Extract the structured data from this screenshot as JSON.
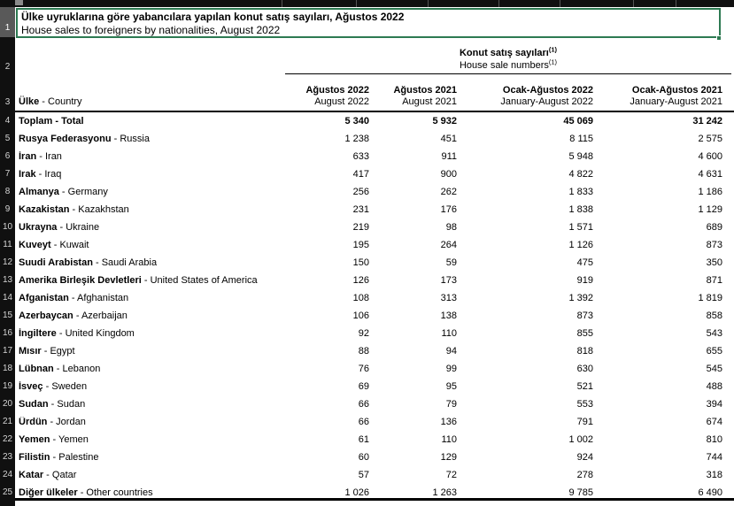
{
  "colors": {
    "selection_green": "#2d7a52",
    "gutter_black": "#101010",
    "selected_row_header_gray": "#595959"
  },
  "sheet": {
    "title": {
      "tr": "Ülke uyruklarına göre yabancılara yapılan konut satış sayıları, Ağustos 2022",
      "en": "House sales to foreigners by nationalities, August 2022"
    },
    "group_header": {
      "tr": "Konut satış sayıları",
      "en": "House sale numbers",
      "footnote": "(1)"
    },
    "row_header": {
      "tr": "Ülke",
      "en": "Country"
    },
    "name_separator": " - ",
    "columns": [
      {
        "tr": "Ağustos 2022",
        "en": "August 2022"
      },
      {
        "tr": "Ağustos 2021",
        "en": "August 2021"
      },
      {
        "tr": "Ocak-Ağustos 2022",
        "en": "January-August 2022"
      },
      {
        "tr": "Ocak-Ağustos 2021",
        "en": "January-August 2021"
      }
    ],
    "gutter": {
      "row_numbers": [
        "1",
        "2",
        "3",
        "4",
        "5",
        "6",
        "7",
        "8",
        "9",
        "10",
        "11",
        "12",
        "13",
        "14",
        "15",
        "16",
        "17",
        "18",
        "19",
        "20",
        "21",
        "22",
        "23",
        "24",
        "25"
      ]
    },
    "rows": [
      {
        "tr": "Toplam",
        "en": "Total",
        "bold": true,
        "values": [
          "5 340",
          "5 932",
          "45 069",
          "31 242"
        ]
      },
      {
        "tr": "Rusya Federasyonu",
        "en": "Russia",
        "values": [
          "1 238",
          "451",
          "8 115",
          "2 575"
        ]
      },
      {
        "tr": "İran",
        "en": "Iran",
        "values": [
          "633",
          "911",
          "5 948",
          "4 600"
        ]
      },
      {
        "tr": "Irak",
        "en": "Iraq",
        "values": [
          "417",
          "900",
          "4 822",
          "4 631"
        ]
      },
      {
        "tr": "Almanya",
        "en": "Germany",
        "values": [
          "256",
          "262",
          "1 833",
          "1 186"
        ]
      },
      {
        "tr": "Kazakistan",
        "en": "Kazakhstan",
        "values": [
          "231",
          "176",
          "1 838",
          "1 129"
        ]
      },
      {
        "tr": "Ukrayna",
        "en": "Ukraine",
        "values": [
          "219",
          "98",
          "1 571",
          "689"
        ]
      },
      {
        "tr": "Kuveyt",
        "en": "Kuwait",
        "values": [
          "195",
          "264",
          "1 126",
          "873"
        ]
      },
      {
        "tr": "Suudi Arabistan",
        "en": "Saudi Arabia",
        "values": [
          "150",
          "59",
          "475",
          "350"
        ]
      },
      {
        "tr": "Amerika Birleşik Devletleri",
        "en": "United States of America",
        "values": [
          "126",
          "173",
          "919",
          "871"
        ]
      },
      {
        "tr": "Afganistan",
        "en": "Afghanistan",
        "values": [
          "108",
          "313",
          "1 392",
          "1 819"
        ]
      },
      {
        "tr": "Azerbaycan",
        "en": "Azerbaijan",
        "values": [
          "106",
          "138",
          "873",
          "858"
        ]
      },
      {
        "tr": "İngiltere",
        "en": "United Kingdom",
        "values": [
          "92",
          "110",
          "855",
          "543"
        ]
      },
      {
        "tr": "Mısır",
        "en": "Egypt",
        "values": [
          "88",
          "94",
          "818",
          "655"
        ]
      },
      {
        "tr": "Lübnan",
        "en": "Lebanon",
        "values": [
          "76",
          "99",
          "630",
          "545"
        ]
      },
      {
        "tr": "İsveç",
        "en": "Sweden",
        "values": [
          "69",
          "95",
          "521",
          "488"
        ]
      },
      {
        "tr": "Sudan",
        "en": "Sudan",
        "values": [
          "66",
          "79",
          "553",
          "394"
        ]
      },
      {
        "tr": "Ürdün",
        "en": "Jordan",
        "values": [
          "66",
          "136",
          "791",
          "674"
        ]
      },
      {
        "tr": "Yemen",
        "en": "Yemen",
        "values": [
          "61",
          "110",
          "1 002",
          "810"
        ]
      },
      {
        "tr": "Filistin",
        "en": "Palestine",
        "values": [
          "60",
          "129",
          "924",
          "744"
        ]
      },
      {
        "tr": "Katar",
        "en": "Qatar",
        "values": [
          "57",
          "72",
          "278",
          "318"
        ]
      },
      {
        "tr": "Diğer ülkeler",
        "en": "Other countries",
        "values": [
          "1 026",
          "1 263",
          "9 785",
          "6 490"
        ]
      }
    ]
  }
}
